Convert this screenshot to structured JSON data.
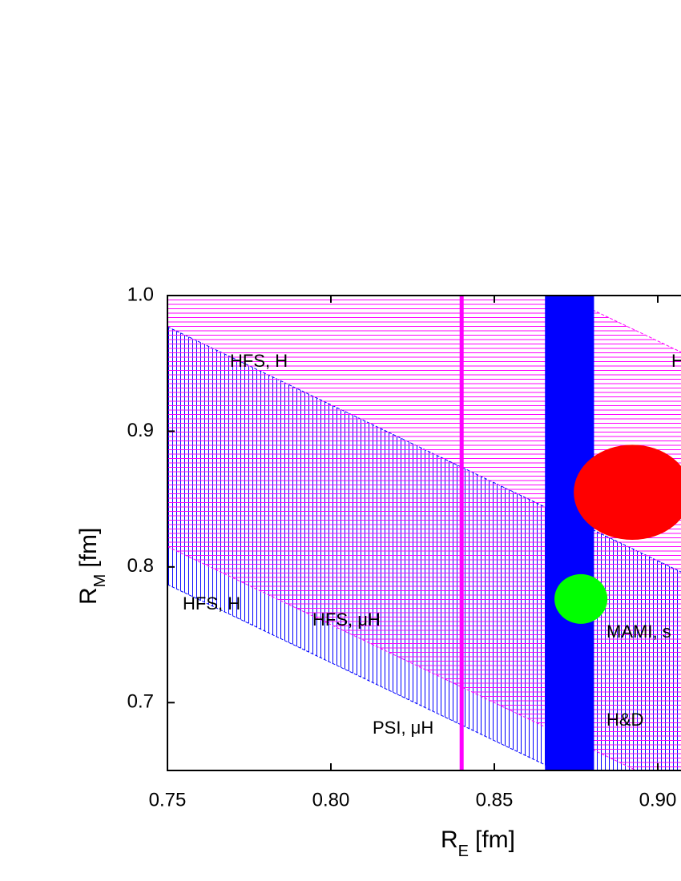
{
  "chart_data": {
    "type": "region",
    "xlabel": "R",
    "xlabel_sub": "E",
    "xlabel_unit": "[fm]",
    "ylabel": "R",
    "ylabel_sub": "M",
    "ylabel_unit": "[fm]",
    "xlim": [
      0.75,
      0.91
    ],
    "ylim": [
      0.65,
      1.0
    ],
    "xticks": [
      0.75,
      {
        "value": 0.8,
        "label": "0.80"
      },
      0.85,
      {
        "value": 0.9,
        "label": "0.90"
      }
    ],
    "yticks": [
      0.7,
      0.8,
      0.9,
      {
        "value": 1.0,
        "label": "1.0"
      }
    ],
    "bands": [
      {
        "color": "#0000ff",
        "hatch": "vertical",
        "upper": [
          0.977,
          0.793
        ],
        "lower": [
          0.787,
          0.603
        ]
      },
      {
        "color": "#ff00ff",
        "hatch": "horizontal",
        "upper": [
          1.139,
          0.955
        ],
        "lower": [
          0.815,
          0.631
        ]
      }
    ],
    "vband": {
      "color": "#0000ff",
      "xmin": 0.8655,
      "xmax": 0.8805
    },
    "vline": {
      "color": "#ff00ff",
      "x": 0.84
    },
    "ellipses": [
      {
        "color": "#ff0000",
        "cx": 0.8922,
        "cy": 0.855,
        "rx": 0.0179,
        "ry": 0.035
      },
      {
        "color": "#00ff00",
        "cx": 0.8765,
        "cy": 0.7764,
        "rx": 0.0081,
        "ry": 0.0183
      }
    ],
    "annotations": [
      "HFS, H",
      "HFS, H",
      "HFS, μH",
      "PSI, μH",
      "MAMI, s",
      "H&D",
      "H"
    ]
  }
}
